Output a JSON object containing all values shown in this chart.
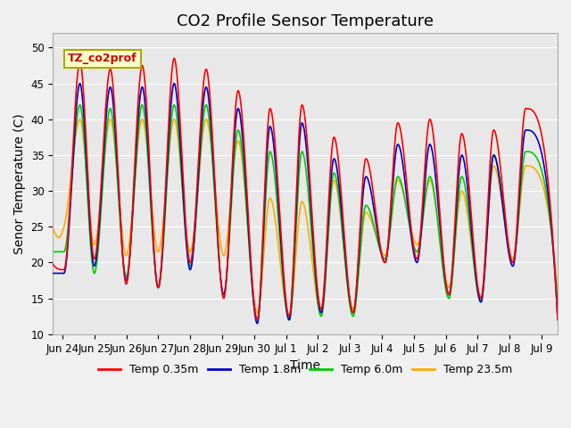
{
  "title": "CO2 Profile Sensor Temperature",
  "ylabel": "Senor Temperature (C)",
  "xlabel": "Time",
  "ylim": [
    10,
    52
  ],
  "xlim": [
    -0.3,
    15.5
  ],
  "background_color": "#e8e8e8",
  "legend_label": "TZ_co2prof",
  "series_colors": {
    "Temp 0.35m": "#ff0000",
    "Temp 1.8m": "#0000cc",
    "Temp 6.0m": "#00cc00",
    "Temp 23.5m": "#ffaa00"
  },
  "xtick_labels": [
    "Jun 24",
    "Jun 25",
    "Jun 26",
    "Jun 27",
    "Jun 28",
    "Jun 29",
    "Jun 30",
    "Jul 1",
    "Jul 2",
    "Jul 3",
    "Jul 4",
    "Jul 5",
    "Jul 6",
    "Jul 7",
    "Jul 8",
    "Jul 9"
  ],
  "xtick_positions": [
    0,
    1,
    2,
    3,
    4,
    5,
    6,
    7,
    8,
    9,
    10,
    11,
    12,
    13,
    14,
    15
  ],
  "ytick_positions": [
    10,
    15,
    20,
    25,
    30,
    35,
    40,
    45,
    50
  ],
  "grid_color": "#ffffff",
  "title_fontsize": 13,
  "axis_fontsize": 10,
  "tick_fontsize": 8.5,
  "legend_fontsize": 9,
  "fig_bg": "#f0f0f0",
  "red_peaks": [
    48.0,
    47.0,
    47.5,
    48.5,
    47.0,
    44.0,
    41.5,
    42.0,
    37.5,
    34.5,
    39.5,
    40.0,
    38.0,
    38.5,
    41.5
  ],
  "red_troughs": [
    19.0,
    20.5,
    17.0,
    16.5,
    20.0,
    15.0,
    12.0,
    12.5,
    13.5,
    13.0,
    20.0,
    20.5,
    15.5,
    15.0,
    20.0
  ],
  "blue_peaks": [
    45.0,
    44.5,
    44.5,
    45.0,
    44.5,
    41.5,
    39.0,
    39.5,
    34.5,
    32.0,
    36.5,
    36.5,
    35.0,
    35.0,
    38.5
  ],
  "blue_troughs": [
    18.5,
    19.5,
    17.5,
    16.5,
    19.0,
    15.5,
    11.5,
    12.0,
    13.0,
    13.0,
    20.0,
    20.0,
    15.5,
    14.5,
    19.5
  ],
  "green_peaks": [
    42.0,
    41.5,
    42.0,
    42.0,
    42.0,
    38.5,
    35.5,
    35.5,
    32.5,
    28.0,
    32.0,
    32.0,
    32.0,
    35.0,
    35.5
  ],
  "green_troughs": [
    21.5,
    18.5,
    18.0,
    16.5,
    19.5,
    15.5,
    12.0,
    12.0,
    12.5,
    12.5,
    20.5,
    21.5,
    15.0,
    14.5,
    20.0
  ],
  "orange_peaks": [
    40.0,
    40.0,
    40.0,
    40.0,
    40.0,
    37.0,
    29.0,
    28.5,
    31.5,
    27.0,
    31.5,
    31.5,
    30.0,
    33.5,
    33.5
  ],
  "orange_troughs": [
    25.0,
    22.5,
    21.0,
    21.5,
    21.5,
    21.0,
    13.0,
    12.5,
    13.0,
    13.5,
    21.0,
    22.5,
    16.5,
    15.0,
    20.5
  ],
  "peak_times": [
    0.55,
    1.5,
    2.5,
    3.5,
    4.5,
    5.5,
    6.5,
    7.5,
    8.5,
    9.5,
    10.5,
    11.5,
    12.5,
    13.5,
    14.5
  ],
  "trough_times": [
    0.05,
    1.0,
    2.0,
    3.0,
    4.0,
    5.05,
    6.1,
    7.1,
    8.1,
    9.1,
    10.1,
    11.1,
    12.1,
    13.1,
    14.1
  ]
}
